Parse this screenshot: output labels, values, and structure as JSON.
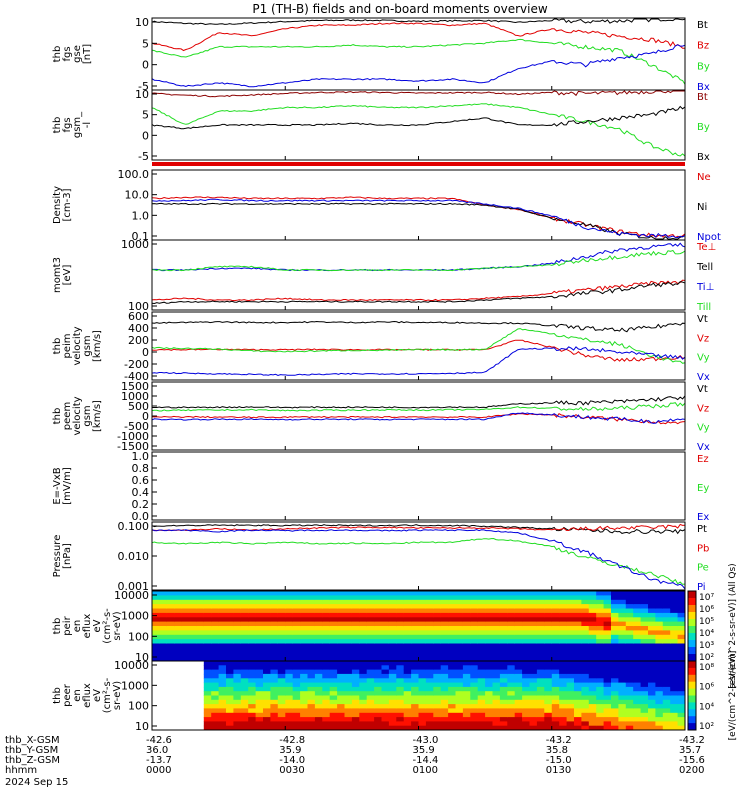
{
  "title": "P1 (TH-B) fields and on-board moments overview",
  "colors": {
    "black": "#000000",
    "red": "#e00000",
    "green": "#22dd22",
    "blue": "#0000dd",
    "darkred": "#8b0000"
  },
  "chart_data": [
    {
      "type": "line",
      "id": "fgs_gse",
      "ylabel": [
        "thb",
        "fgs",
        "gse",
        "[nT]"
      ],
      "yticks": [
        "10",
        "5",
        "0",
        "-5"
      ],
      "yrange": [
        -9,
        11
      ],
      "series": [
        {
          "name": "Bt",
          "color": "black",
          "values": [
            10,
            9.5,
            9.2,
            9.6,
            10,
            10.3,
            10.4,
            10.3,
            10.1,
            10.2,
            10.3,
            9.8,
            10.3,
            10,
            10.2,
            10.6,
            11
          ]
        },
        {
          "name": "Bz",
          "color": "red",
          "values": [
            4,
            2,
            7,
            6,
            8,
            9,
            9,
            9.5,
            9.5,
            9,
            9.5,
            6,
            8,
            7,
            6,
            5,
            3
          ]
        },
        {
          "name": "By",
          "color": "green",
          "values": [
            2,
            0,
            3,
            3,
            3,
            3,
            3.5,
            3,
            3,
            3.5,
            4,
            5,
            4,
            3,
            2,
            -2,
            -7
          ]
        },
        {
          "name": "Bx",
          "color": "blue",
          "values": [
            -6,
            -8,
            -7,
            -8,
            -7,
            -6,
            -6,
            -6,
            -6.5,
            -6,
            -7,
            -3,
            -1,
            -2,
            0,
            1,
            4
          ]
        }
      ]
    },
    {
      "type": "line",
      "id": "fgs_gsm",
      "ylabel": [
        "thb",
        "fgs",
        "gsm_",
        "-l"
      ],
      "yticks": [
        "10",
        "5",
        "0",
        "-5"
      ],
      "yrange": [
        -9,
        11
      ],
      "series": [
        {
          "name": "Bt",
          "color": "darkred",
          "values": [
            10,
            9.5,
            9.2,
            9.6,
            10,
            10.3,
            10.4,
            10.3,
            10.1,
            10.2,
            10.3,
            9.8,
            10.3,
            10,
            10.2,
            10.6,
            11
          ]
        },
        {
          "name": "By",
          "color": "green",
          "values": [
            6,
            1,
            5,
            5,
            6,
            6,
            6.5,
            6,
            6,
            6.5,
            7,
            6,
            4,
            2,
            0,
            -5,
            -8
          ]
        },
        {
          "name": "Bx",
          "color": "black",
          "values": [
            1,
            0,
            1,
            1,
            1,
            1,
            1.5,
            1,
            1,
            2,
            3,
            1,
            1,
            2,
            3,
            4,
            6
          ]
        }
      ]
    },
    {
      "type": "line",
      "id": "density",
      "ylabel": [
        "Density",
        "[cm-3]"
      ],
      "log": true,
      "yticks": [
        "100.0",
        "10.0",
        "1.0",
        "0.1"
      ],
      "yrange": [
        -1.2,
        2
      ],
      "series": [
        {
          "name": "Ne",
          "color": "red",
          "values": [
            0.7,
            0.75,
            0.75,
            0.7,
            0.7,
            0.7,
            0.75,
            0.7,
            0.7,
            0.7,
            0.4,
            0.2,
            -0.2,
            -0.5,
            -0.8,
            -1,
            -1
          ]
        },
        {
          "name": "Ni",
          "color": "black",
          "values": [
            0.45,
            0.45,
            0.45,
            0.45,
            0.45,
            0.45,
            0.45,
            0.45,
            0.45,
            0.45,
            0.4,
            0.2,
            -0.2,
            -0.5,
            -0.9,
            -1.1,
            -1.1
          ]
        },
        {
          "name": "Npot",
          "color": "blue",
          "values": [
            0.6,
            0.6,
            0.65,
            0.6,
            0.6,
            0.6,
            0.6,
            0.6,
            0.6,
            0.6,
            0.45,
            0.25,
            -0.1,
            -0.6,
            -0.9,
            -1,
            -1
          ]
        }
      ]
    },
    {
      "type": "line",
      "id": "mom_temp",
      "ylabel": [
        "momt3",
        "[eV]"
      ],
      "log": true,
      "yticks": [
        "1000",
        "100"
      ],
      "yrange": [
        1.0,
        3.1
      ],
      "series": [
        {
          "name": "Te⊥",
          "color": "red",
          "values": [
            1.3,
            1.35,
            1.3,
            1.3,
            1.35,
            1.3,
            1.3,
            1.3,
            1.3,
            1.3,
            1.35,
            1.4,
            1.5,
            1.6,
            1.7,
            1.8,
            1.85
          ]
        },
        {
          "name": "Tell",
          "color": "black",
          "values": [
            1.2,
            1.25,
            1.25,
            1.25,
            1.25,
            1.25,
            1.25,
            1.25,
            1.25,
            1.25,
            1.3,
            1.35,
            1.4,
            1.5,
            1.6,
            1.75,
            1.8
          ]
        },
        {
          "name": "Ti⊥",
          "color": "blue",
          "values": [
            2.2,
            2.2,
            2.25,
            2.25,
            2.2,
            2.2,
            2.2,
            2.2,
            2.2,
            2.2,
            2.25,
            2.3,
            2.4,
            2.6,
            2.8,
            2.9,
            2.95
          ]
        },
        {
          "name": "Till",
          "color": "green",
          "values": [
            2.2,
            2.2,
            2.3,
            2.3,
            2.2,
            2.2,
            2.2,
            2.2,
            2.2,
            2.2,
            2.25,
            2.3,
            2.35,
            2.5,
            2.6,
            2.7,
            2.75
          ]
        }
      ]
    },
    {
      "type": "line",
      "id": "peim_velocity",
      "ylabel": [
        "thb",
        "peim",
        "velocity",
        "gsm",
        "[km/s]"
      ],
      "yticks": [
        "600",
        "400",
        "200",
        "0",
        "-200",
        "-400"
      ],
      "yrange": [
        -500,
        600
      ],
      "series": [
        {
          "name": "Vt",
          "color": "black",
          "values": [
            420,
            430,
            440,
            430,
            430,
            440,
            430,
            440,
            430,
            430,
            420,
            420,
            380,
            340,
            300,
            350,
            430
          ]
        },
        {
          "name": "Vz",
          "color": "red",
          "values": [
            -10,
            -10,
            -5,
            -10,
            -10,
            -5,
            -10,
            -10,
            -10,
            -10,
            -10,
            150,
            30,
            -100,
            -180,
            -160,
            -120
          ]
        },
        {
          "name": "Vy",
          "color": "green",
          "values": [
            20,
            10,
            0,
            -30,
            -40,
            -30,
            -20,
            -20,
            -10,
            -10,
            -5,
            330,
            250,
            150,
            80,
            -100,
            -250
          ]
        },
        {
          "name": "Vx",
          "color": "blue",
          "values": [
            -380,
            -390,
            -400,
            -410,
            -420,
            -410,
            -400,
            -400,
            -400,
            -390,
            -380,
            0,
            10,
            0,
            -50,
            -100,
            -150
          ]
        }
      ]
    },
    {
      "type": "line",
      "id": "peem_velocity",
      "ylabel": [
        "thb",
        "peem",
        "velocity",
        "gsm",
        "[km/s]"
      ],
      "yticks": [
        "1500",
        "1000",
        "500",
        "0",
        "-500",
        "-1000",
        "-1500"
      ],
      "yrange": [
        -1600,
        1500
      ],
      "series": [
        {
          "name": "Vt",
          "color": "black",
          "values": [
            350,
            340,
            350,
            360,
            340,
            350,
            350,
            350,
            340,
            360,
            350,
            500,
            550,
            550,
            600,
            700,
            800
          ]
        },
        {
          "name": "Vz",
          "color": "red",
          "values": [
            -100,
            -90,
            -100,
            -110,
            -100,
            -90,
            -100,
            -100,
            -90,
            -100,
            -100,
            50,
            0,
            -100,
            -200,
            -300,
            -400
          ]
        },
        {
          "name": "Vy",
          "color": "green",
          "values": [
            200,
            210,
            220,
            230,
            200,
            210,
            220,
            230,
            220,
            230,
            250,
            350,
            300,
            250,
            300,
            400,
            500
          ]
        },
        {
          "name": "Vx",
          "color": "blue",
          "values": [
            -200,
            -210,
            -200,
            -200,
            -210,
            -200,
            -200,
            -210,
            -200,
            -200,
            -200,
            100,
            0,
            -100,
            -200,
            -300,
            -200
          ]
        }
      ]
    },
    {
      "type": "line",
      "id": "e_field",
      "ylabel": [
        "E=-VxB",
        "[mV/m]"
      ],
      "yticks": [
        "1.0",
        "0.8",
        "0.6",
        "0.4",
        "0.2",
        "0.0"
      ],
      "yrange": [
        0,
        1
      ],
      "series": [
        {
          "name": "Ez",
          "color": "red",
          "values": []
        },
        {
          "name": "Ey",
          "color": "green",
          "values": []
        },
        {
          "name": "Ex",
          "color": "blue",
          "values": []
        }
      ]
    },
    {
      "type": "line",
      "id": "pressure",
      "ylabel": [
        "Pressure",
        "[nPa]"
      ],
      "log": true,
      "yticks": [
        "0.100",
        "0.010",
        "0.001"
      ],
      "yrange": [
        -3.4,
        -0.9
      ],
      "series": [
        {
          "name": "Pt",
          "color": "black",
          "values": [
            -1.05,
            -1.03,
            -1.02,
            -1.02,
            -1.03,
            -1.02,
            -1.03,
            -1.03,
            -1.02,
            -1.03,
            -1.05,
            -1.1,
            -1.15,
            -1.2,
            -1.25,
            -1.25,
            -1.25
          ]
        },
        {
          "name": "Pb",
          "color": "red",
          "values": [
            -1.2,
            -1.2,
            -1.15,
            -1.2,
            -1.15,
            -1.12,
            -1.1,
            -1.1,
            -1.12,
            -1.12,
            -1.12,
            -1.15,
            -1.2,
            -1.15,
            -1.12,
            -1.1,
            -1.05
          ]
        },
        {
          "name": "Pe",
          "color": "green",
          "values": [
            -1.65,
            -1.7,
            -1.65,
            -1.7,
            -1.65,
            -1.7,
            -1.68,
            -1.7,
            -1.65,
            -1.65,
            -1.5,
            -1.6,
            -1.8,
            -2.2,
            -2.5,
            -2.8,
            -3.2
          ]
        },
        {
          "name": "Pi",
          "color": "blue",
          "values": [
            -1.2,
            -1.2,
            -1.25,
            -1.2,
            -1.22,
            -1.2,
            -1.2,
            -1.22,
            -1.2,
            -1.2,
            -1.2,
            -1.3,
            -1.6,
            -2.0,
            -2.5,
            -3.0,
            -3.3
          ]
        }
      ]
    },
    {
      "type": "heatmap",
      "id": "peir",
      "ylabel": [
        "thb",
        "peir",
        "en",
        "eflux",
        "eV",
        "(cm²-s-",
        "sr-eV)"
      ],
      "yticks": [
        "10000",
        "1000",
        "100",
        "10"
      ],
      "yrange": [
        0.9,
        4.3
      ],
      "colorbar": {
        "ticks": [
          "10⁷",
          "10⁶",
          "10⁵",
          "10⁴",
          "10³",
          "10²"
        ],
        "label": "[eV/(cm^2-s-sr-eV)] (All Qs)"
      }
    },
    {
      "type": "heatmap",
      "id": "peer",
      "ylabel": [
        "thb",
        "peer",
        "en",
        "eflux",
        "eV",
        "(cm²-s-",
        "sr-eV)"
      ],
      "yticks": [
        "10000",
        "1000",
        "100",
        "10"
      ],
      "yrange": [
        0.9,
        4.3
      ],
      "colorbar": {
        "ticks": [
          "10⁸",
          "10⁶",
          "10⁴",
          "10²"
        ],
        "label": "[eV/(cm^2-s-sr-eV)]"
      }
    }
  ],
  "xaxis": {
    "rows": [
      {
        "label": "thb_X-GSM",
        "values": [
          "-42.6",
          "-42.8",
          "-43.0",
          "-43.2",
          "-43.2"
        ]
      },
      {
        "label": "thb_Y-GSM",
        "values": [
          "36.0",
          "35.9",
          "35.9",
          "35.8",
          "35.7"
        ]
      },
      {
        "label": "thb_Z-GSM",
        "values": [
          "-13.7",
          "-14.0",
          "-14.4",
          "-15.0",
          "-15.6"
        ]
      },
      {
        "label": "hhmm",
        "values": [
          "0000",
          "0030",
          "0100",
          "0130",
          "0200"
        ]
      }
    ],
    "date": "2024 Sep 15"
  }
}
